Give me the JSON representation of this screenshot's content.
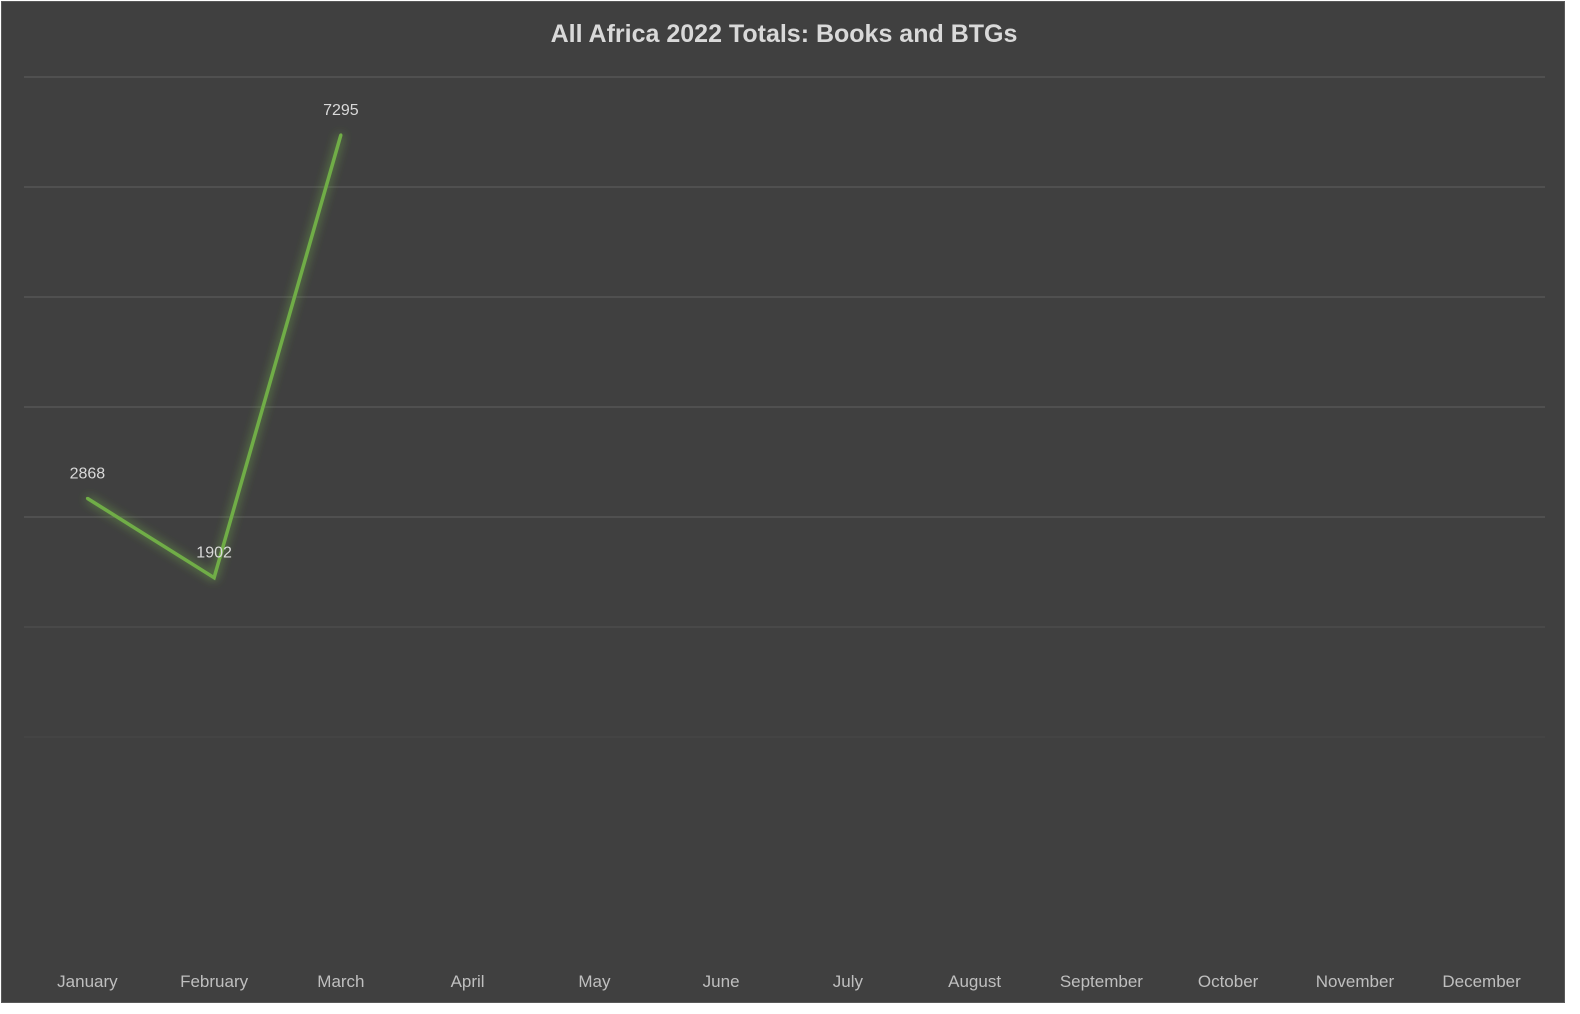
{
  "chart_data": {
    "type": "line",
    "title": "All Africa 2022 Totals: Books and BTGs",
    "xlabel": "",
    "ylabel": "",
    "categories": [
      "January",
      "February",
      "March",
      "April",
      "May",
      "June",
      "July",
      "August",
      "September",
      "October",
      "November",
      "December"
    ],
    "series": [
      {
        "values": [
          2868,
          1902,
          7295,
          null,
          null,
          null,
          null,
          null,
          null,
          null,
          null,
          null
        ],
        "data_labels": [
          "2868",
          "1902",
          "7295"
        ],
        "color": "#70ad47"
      }
    ],
    "ylim": [
      -1500,
      8000
    ],
    "grid": true,
    "legend": "none",
    "colors": {
      "background": "#404040",
      "gridline": "#595959",
      "text": "#d9d9d9",
      "series": "#70ad47"
    }
  }
}
